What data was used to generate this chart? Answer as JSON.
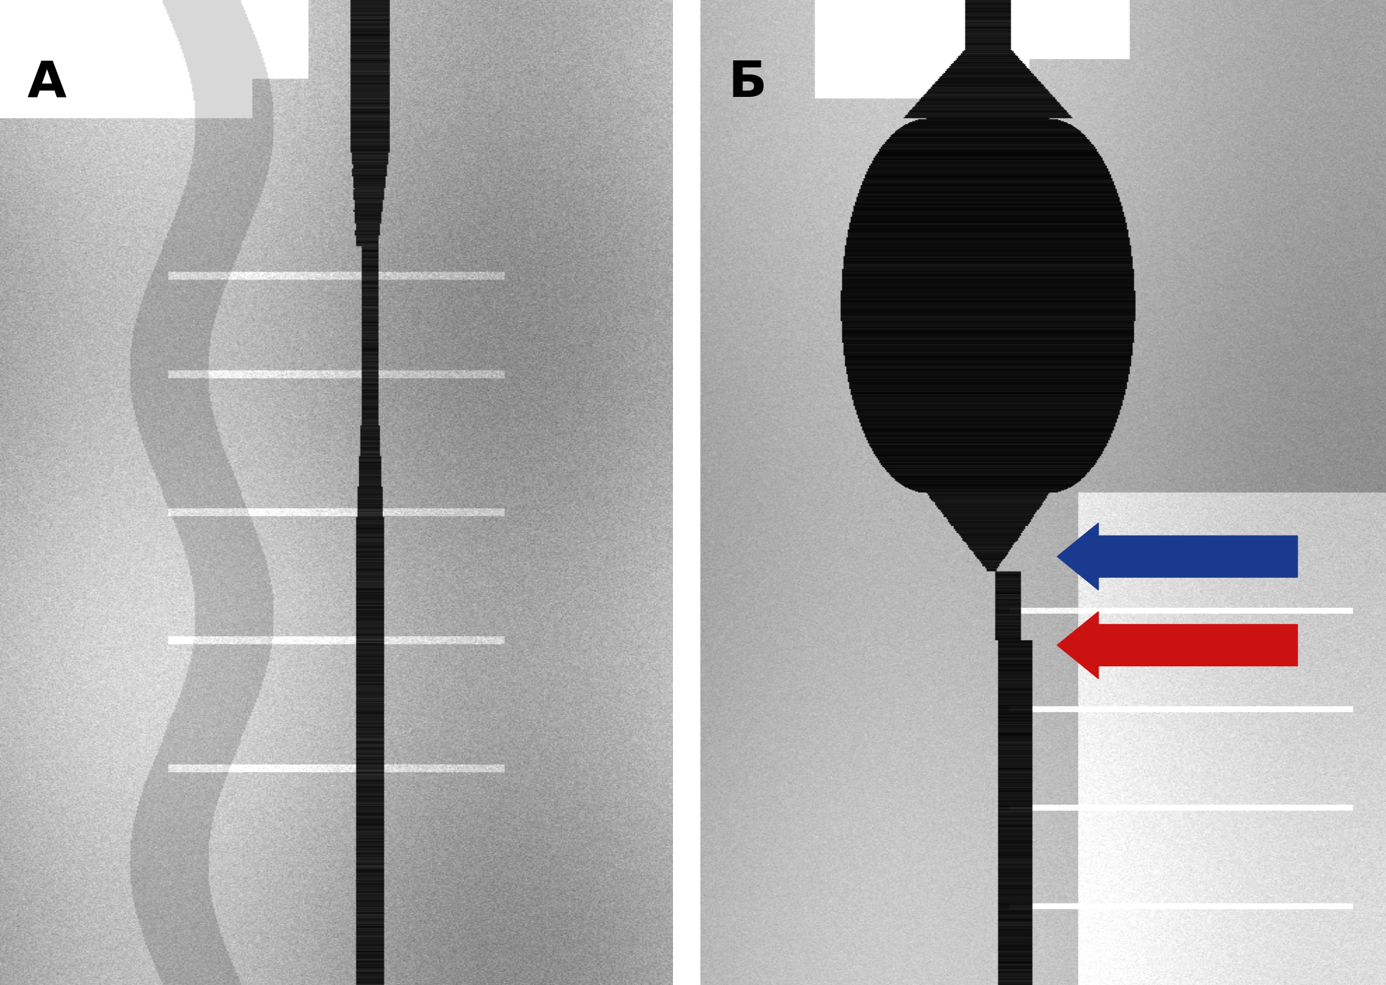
{
  "title": "",
  "label_A": "А",
  "label_B": "Б",
  "label_fontsize": 52,
  "label_fontweight": "bold",
  "label_color": "#000000",
  "fig_width": 19.74,
  "fig_height": 14.03,
  "bg_color": "#ffffff",
  "blue_arrow_color": "#1a3a8f",
  "red_arrow_color": "#cc1111"
}
